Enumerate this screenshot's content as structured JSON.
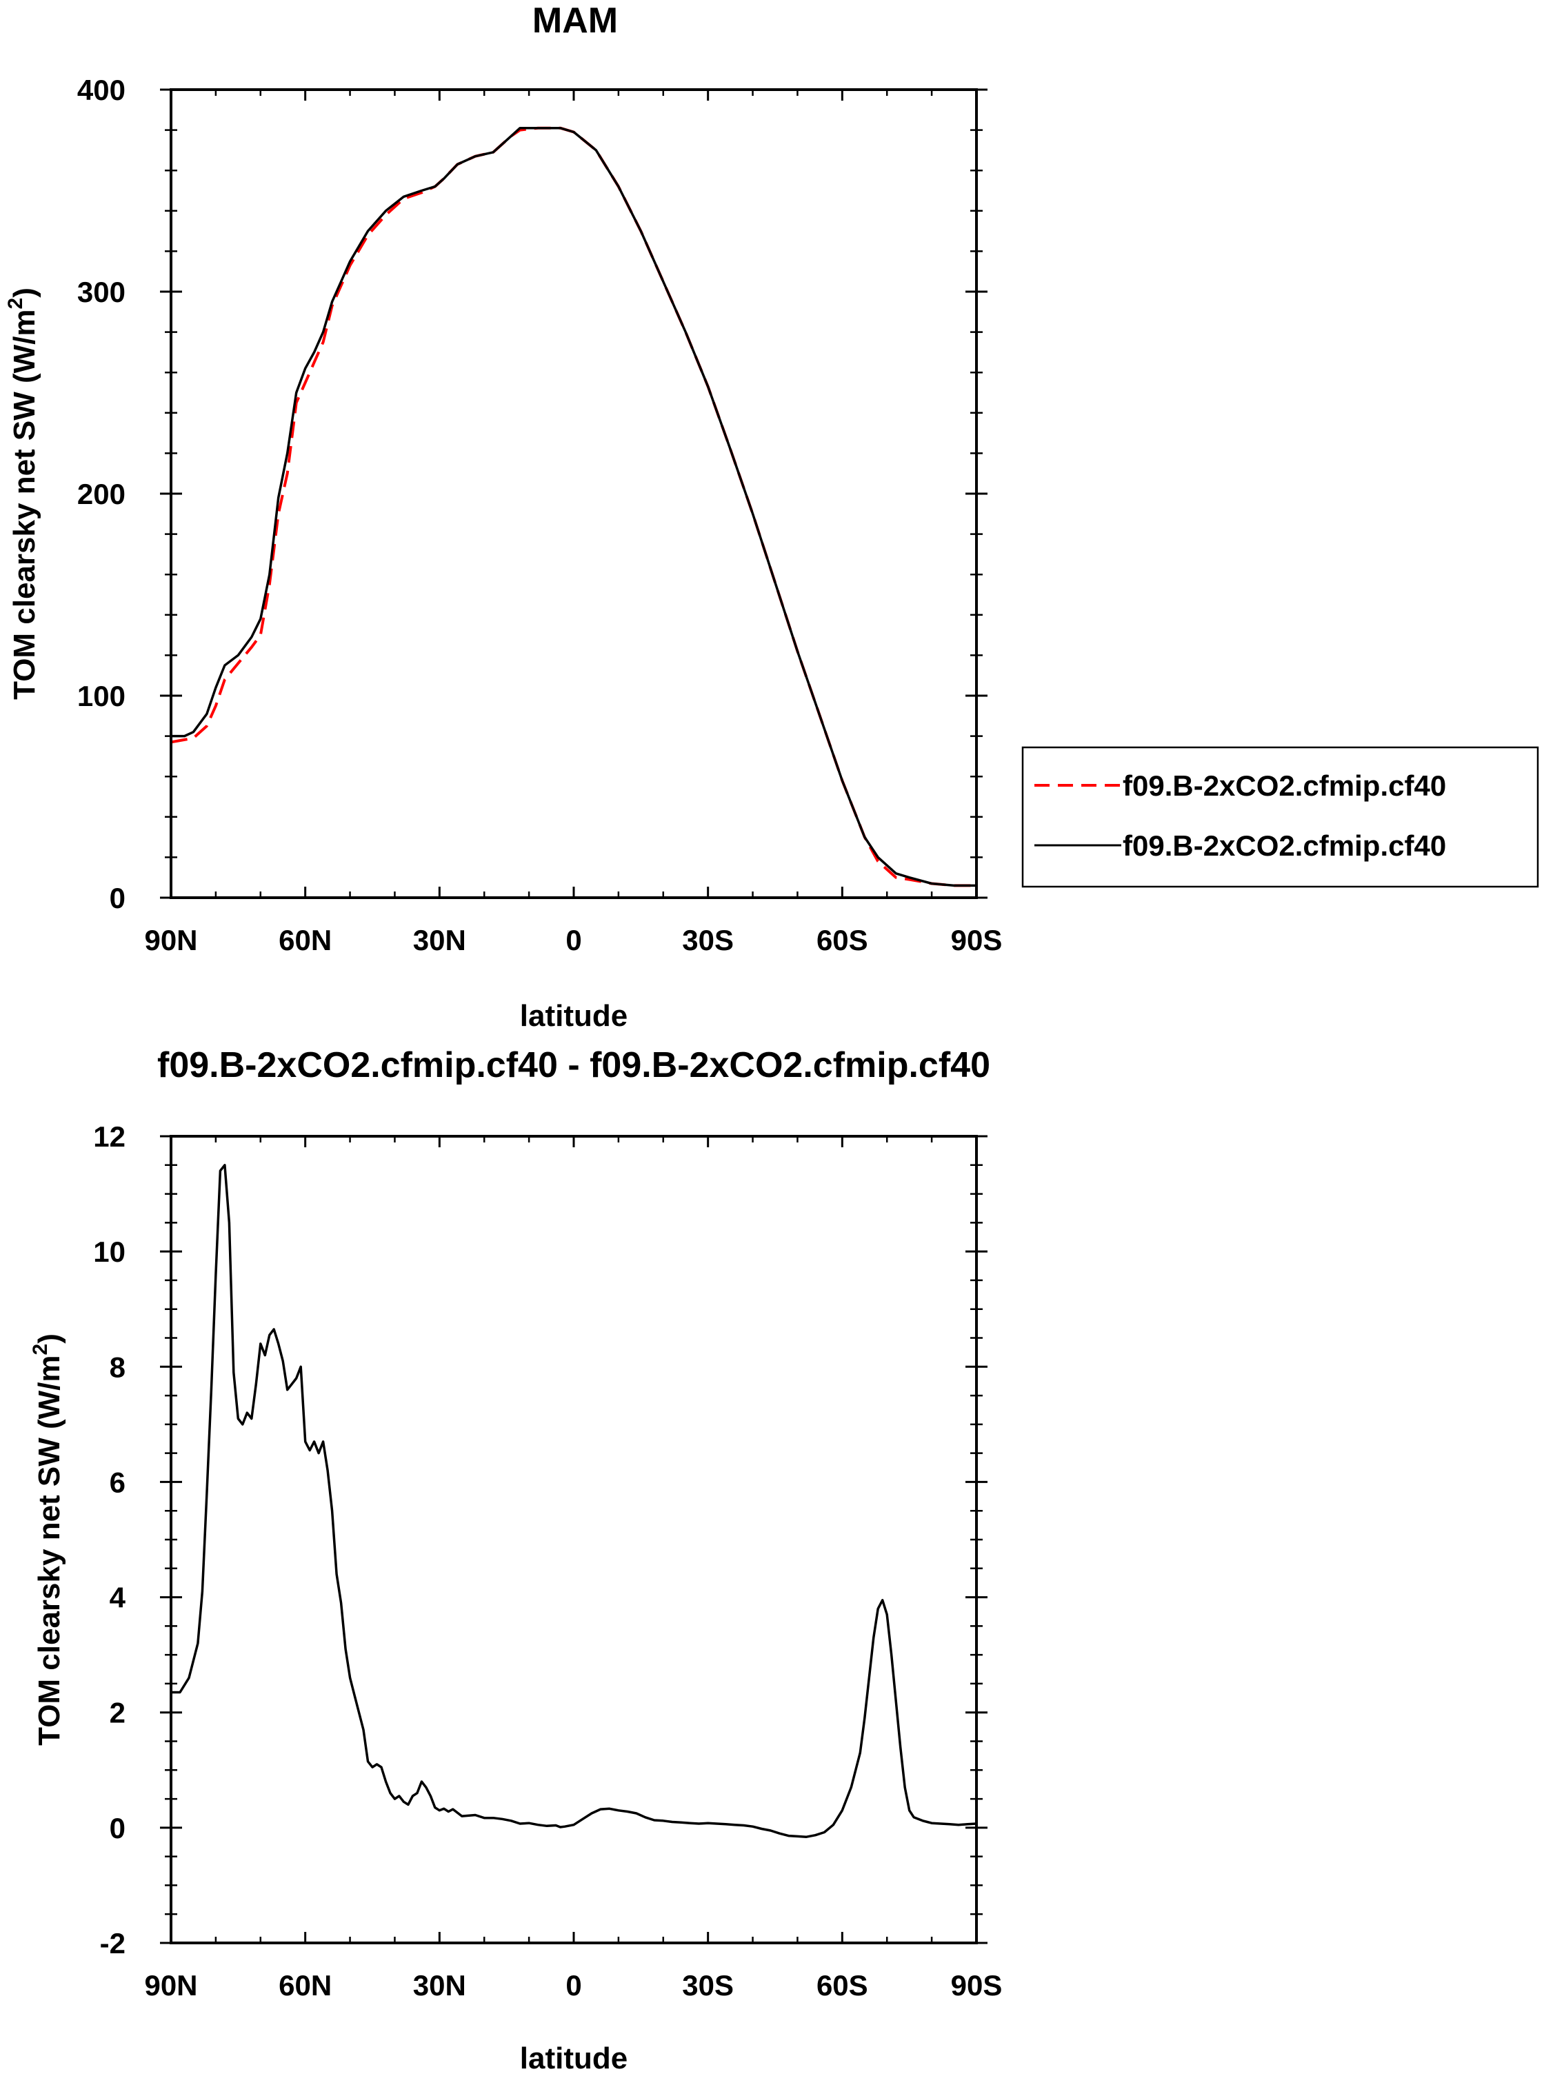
{
  "chart_data": [
    {
      "type": "line",
      "title": "MAM",
      "xlabel": "latitude",
      "ylabel_main": "TOM clearsky net SW (W/m",
      "ylabel_sup": "2",
      "ylabel_close": ")",
      "xlim": [
        90,
        -90
      ],
      "ylim": [
        0,
        400
      ],
      "yticks": [
        0,
        100,
        200,
        300,
        400
      ],
      "xticks": [
        {
          "value": 90,
          "label": "90N"
        },
        {
          "value": 60,
          "label": "60N"
        },
        {
          "value": 30,
          "label": "30N"
        },
        {
          "value": 0,
          "label": "0"
        },
        {
          "value": -30,
          "label": "30S"
        },
        {
          "value": -60,
          "label": "60S"
        },
        {
          "value": -90,
          "label": "90S"
        }
      ],
      "legend_position": "right",
      "series": [
        {
          "name": "f09.B-2xCO2.cfmip.cf40",
          "color": "#ff0000",
          "dash": "dashed",
          "x": [
            90,
            85,
            82,
            80,
            78,
            75,
            72,
            70,
            68,
            66,
            64,
            62,
            60,
            58,
            56,
            54,
            52,
            50,
            46,
            42,
            38,
            34,
            31,
            29,
            26,
            22,
            18,
            14,
            12,
            8,
            3,
            0,
            -5,
            -10,
            -15,
            -20,
            -25,
            -30,
            -35,
            -40,
            -45,
            -50,
            -55,
            -60,
            -65,
            -68,
            -72,
            -75,
            -80,
            -85,
            -90
          ],
          "y": [
            77,
            79,
            85,
            95,
            108,
            116,
            124,
            130,
            155,
            190,
            210,
            245,
            255,
            265,
            275,
            293,
            303,
            313,
            328,
            338,
            346,
            349,
            352,
            356,
            363,
            367,
            369,
            377,
            380,
            381,
            381,
            379,
            370,
            352,
            330,
            305,
            280,
            253,
            222,
            190,
            156,
            122,
            90,
            58,
            30,
            18,
            10,
            9,
            7,
            6,
            6
          ]
        },
        {
          "name": "f09.B-2xCO2.cfmip.cf40",
          "color": "#000000",
          "dash": "solid",
          "x": [
            90,
            87,
            85,
            82,
            80,
            78,
            75,
            72,
            70,
            68,
            66,
            64,
            62,
            60,
            58,
            56,
            54,
            52,
            50,
            46,
            42,
            38,
            34,
            31,
            29,
            26,
            22,
            18,
            14,
            12,
            8,
            3,
            0,
            -5,
            -10,
            -15,
            -20,
            -25,
            -30,
            -35,
            -40,
            -45,
            -50,
            -55,
            -60,
            -65,
            -68,
            -72,
            -75,
            -80,
            -85,
            -90
          ],
          "y": [
            80,
            80,
            82,
            91,
            104,
            115,
            120,
            129,
            138,
            160,
            198,
            220,
            250,
            262,
            270,
            280,
            295,
            305,
            315,
            330,
            340,
            347,
            350,
            352,
            356,
            363,
            367,
            369,
            377,
            381,
            381,
            381,
            379,
            370,
            352,
            330,
            305,
            280,
            253,
            222,
            190,
            156,
            122,
            90,
            58,
            30,
            20,
            12,
            10,
            7,
            6,
            6
          ]
        }
      ]
    },
    {
      "type": "line",
      "title": "f09.B-2xCO2.cfmip.cf40 - f09.B-2xCO2.cfmip.cf40",
      "xlabel": "latitude",
      "ylabel_main": "TOM clearsky net SW (W/m",
      "ylabel_sup": "2",
      "ylabel_close": ")",
      "xlim": [
        90,
        -90
      ],
      "ylim": [
        -2,
        12
      ],
      "yticks": [
        -2,
        0,
        2,
        4,
        6,
        8,
        10,
        12
      ],
      "xticks": [
        {
          "value": 90,
          "label": "90N"
        },
        {
          "value": 60,
          "label": "60N"
        },
        {
          "value": 30,
          "label": "30N"
        },
        {
          "value": 0,
          "label": "0"
        },
        {
          "value": -30,
          "label": "30S"
        },
        {
          "value": -60,
          "label": "60S"
        },
        {
          "value": -90,
          "label": "90S"
        }
      ],
      "series": [
        {
          "color": "#000000",
          "dash": "solid",
          "x": [
            90,
            88,
            86,
            84,
            83,
            82,
            81,
            80,
            79,
            78,
            77,
            76,
            75,
            74,
            73,
            72,
            71,
            70,
            69,
            68,
            67,
            66,
            65,
            64,
            63,
            62,
            61,
            60,
            59,
            58,
            57,
            56,
            55,
            54,
            53,
            52,
            51,
            50,
            49,
            48,
            47,
            46,
            45,
            44,
            43,
            42,
            41,
            40,
            39,
            38,
            37,
            36,
            35,
            34,
            33,
            32,
            31,
            30,
            29,
            28,
            27,
            25,
            22,
            20,
            18,
            16,
            14,
            12,
            10,
            8,
            6,
            4,
            3,
            2,
            0,
            -2,
            -4,
            -6,
            -8,
            -10,
            -12,
            -14,
            -16,
            -18,
            -20,
            -22,
            -24,
            -26,
            -28,
            -30,
            -32,
            -34,
            -36,
            -38,
            -40,
            -42,
            -44,
            -46,
            -48,
            -50,
            -52,
            -54,
            -56,
            -58,
            -60,
            -62,
            -63,
            -64,
            -65,
            -66,
            -67,
            -68,
            -69,
            -70,
            -71,
            -72,
            -73,
            -74,
            -75,
            -76,
            -77,
            -78,
            -79,
            -80,
            -82,
            -84,
            -86,
            -88,
            -90
          ],
          "y": [
            2.35,
            2.35,
            2.6,
            3.2,
            4.1,
            5.8,
            7.6,
            9.6,
            11.4,
            11.5,
            10.5,
            7.9,
            7.1,
            7.0,
            7.2,
            7.1,
            7.7,
            8.4,
            8.2,
            8.55,
            8.65,
            8.4,
            8.1,
            7.6,
            7.7,
            7.8,
            8.0,
            6.7,
            6.55,
            6.7,
            6.5,
            6.7,
            6.2,
            5.5,
            4.4,
            3.9,
            3.1,
            2.6,
            2.3,
            2.0,
            1.7,
            1.15,
            1.05,
            1.1,
            1.05,
            0.8,
            0.6,
            0.5,
            0.55,
            0.45,
            0.4,
            0.55,
            0.6,
            0.8,
            0.7,
            0.55,
            0.35,
            0.3,
            0.33,
            0.28,
            0.32,
            0.2,
            0.22,
            0.17,
            0.17,
            0.15,
            0.12,
            0.07,
            0.08,
            0.05,
            0.03,
            0.04,
            0.01,
            0.02,
            0.05,
            0.15,
            0.25,
            0.32,
            0.33,
            0.3,
            0.28,
            0.25,
            0.18,
            0.13,
            0.12,
            0.1,
            0.09,
            0.08,
            0.07,
            0.08,
            0.07,
            0.06,
            0.05,
            0.04,
            0.02,
            -0.02,
            -0.05,
            -0.1,
            -0.14,
            -0.15,
            -0.16,
            -0.13,
            -0.08,
            0.05,
            0.3,
            0.7,
            1.0,
            1.3,
            1.9,
            2.6,
            3.3,
            3.8,
            3.95,
            3.7,
            3.0,
            2.2,
            1.4,
            0.7,
            0.3,
            0.18,
            0.15,
            0.12,
            0.1,
            0.08,
            0.07,
            0.06,
            0.05,
            0.06,
            0.07
          ]
        }
      ]
    }
  ]
}
